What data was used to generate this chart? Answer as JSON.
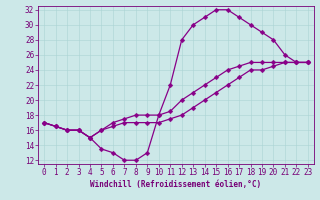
{
  "xlabel": "Windchill (Refroidissement éolien,°C)",
  "xlim_min": -0.5,
  "xlim_max": 23.5,
  "ylim_min": 11.5,
  "ylim_max": 32.5,
  "xticks": [
    0,
    1,
    2,
    3,
    4,
    5,
    6,
    7,
    8,
    9,
    10,
    11,
    12,
    13,
    14,
    15,
    16,
    17,
    18,
    19,
    20,
    21,
    22,
    23
  ],
  "yticks": [
    12,
    14,
    16,
    18,
    20,
    22,
    24,
    26,
    28,
    30,
    32
  ],
  "bg_color": "#cce8e8",
  "line_color": "#880088",
  "series1_x": [
    0,
    1,
    2,
    3,
    4,
    5,
    6,
    7,
    8,
    9,
    10,
    11,
    12,
    13,
    14,
    15,
    16,
    17,
    18,
    19,
    20,
    21,
    22,
    23
  ],
  "series1_y": [
    17,
    16.5,
    16,
    16,
    15,
    13.5,
    13,
    12,
    12,
    13,
    18,
    22,
    28,
    30,
    31,
    32,
    32,
    31,
    30,
    29,
    28,
    26,
    25,
    25
  ],
  "series2_x": [
    0,
    1,
    2,
    3,
    4,
    5,
    6,
    7,
    8,
    9,
    10,
    11,
    12,
    13,
    14,
    15,
    16,
    17,
    18,
    19,
    20,
    21,
    22,
    23
  ],
  "series2_y": [
    17,
    16.5,
    16,
    16,
    15,
    16,
    17,
    17.5,
    18,
    18,
    18,
    18.5,
    20,
    21,
    22,
    23,
    24,
    24.5,
    25,
    25,
    25,
    25,
    25,
    25
  ],
  "series3_x": [
    0,
    1,
    2,
    3,
    4,
    5,
    6,
    7,
    8,
    9,
    10,
    11,
    12,
    13,
    14,
    15,
    16,
    17,
    18,
    19,
    20,
    21,
    22,
    23
  ],
  "series3_y": [
    17,
    16.5,
    16,
    16,
    15,
    16,
    16.5,
    17,
    17,
    17,
    17,
    17.5,
    18,
    19,
    20,
    21,
    22,
    23,
    24,
    24,
    24.5,
    25,
    25,
    25
  ],
  "tick_color": "#770077",
  "tick_fontsize": 5.5,
  "xlabel_fontsize": 5.5,
  "grid_color": "#aad4d4",
  "spine_color": "#770077",
  "marker_size": 2.5,
  "line_width": 0.9
}
